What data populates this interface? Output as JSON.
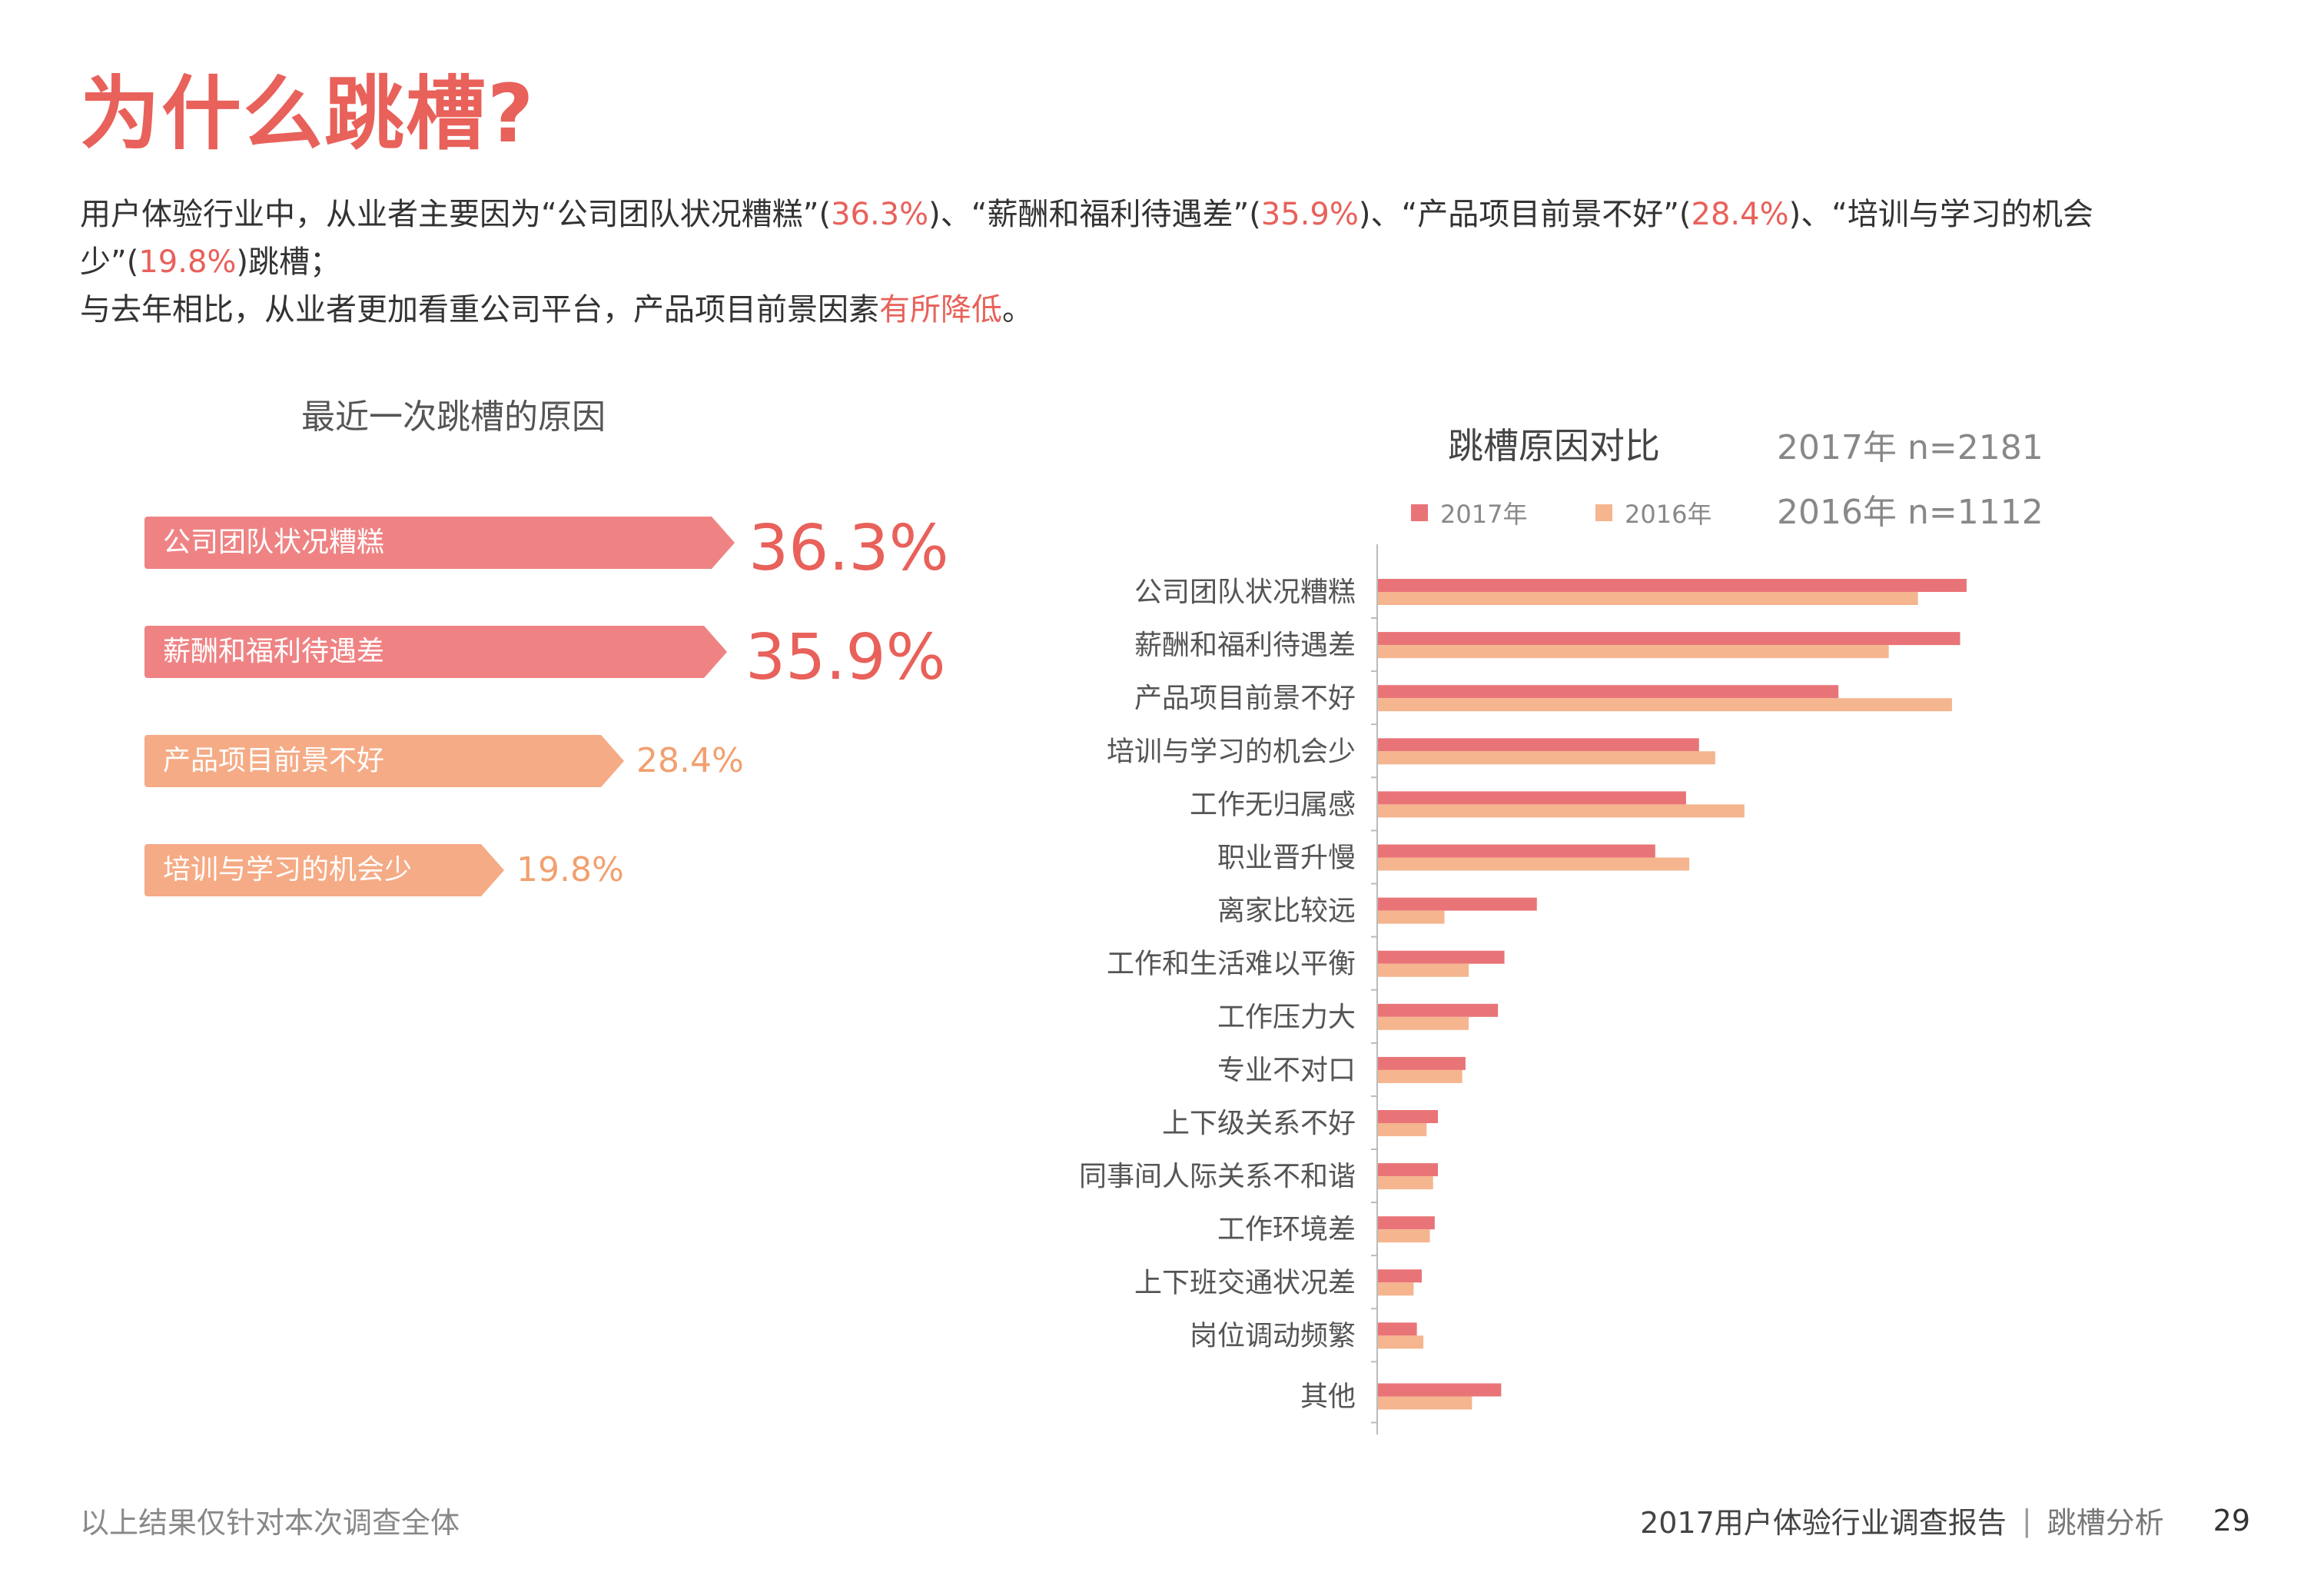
{
  "title": "为什么跳槽?",
  "intro": {
    "p1_a": "用户体验行业中，从业者主要因为“公司团队状况糟糕”(",
    "p1_v1": "36.3%",
    "p1_b": ")、“薪酬和福利待遇差”(",
    "p1_v2": "35.9%",
    "p1_c": ")、“产品项目前景不好”(",
    "p1_v3": "28.4%",
    "p1_d": ")、“培训与学习的机会少”(",
    "p1_v4": "19.8%",
    "p1_e": ")跳槽；",
    "p2_a": "与去年相比，从业者更加看重公司平台，产品项目前景因素",
    "p2_hl": "有所降低",
    "p2_b": "。"
  },
  "top_reasons": {
    "title": "最近一次跳槽的原因",
    "items": [
      {
        "label": "公司团队状况糟糕",
        "value": "36.3%",
        "color": "#ef8384"
      },
      {
        "label": "薪酬和福利待遇差",
        "value": "35.9%",
        "color": "#ef8384"
      },
      {
        "label": "产品项目前景不好",
        "value": "28.4%",
        "color": "#f5ab85"
      },
      {
        "label": "培训与学习的机会少",
        "value": "19.8%",
        "color": "#f5ab85"
      }
    ]
  },
  "chart_data": {
    "type": "bar",
    "orientation": "horizontal",
    "title": "跳槽原因对比",
    "sample_sizes": [
      "2017年 n=2181",
      "2016年 n=1112"
    ],
    "legend_position": "top",
    "xlabel": "",
    "ylabel": "",
    "xlim": [
      0,
      40
    ],
    "grid": false,
    "categories": [
      "公司团队状况糟糕",
      "薪酬和福利待遇差",
      "产品项目前景不好",
      "培训与学习的机会少",
      "工作无归属感",
      "职业晋升慢",
      "离家比较远",
      "工作和生活难以平衡",
      "工作压力大",
      "专业不对口",
      "上下级关系不好",
      "同事间人际关系不和谐",
      "工作环境差",
      "上下班交通状况差",
      "岗位调动频繁",
      "其他"
    ],
    "series": [
      {
        "name": "2017年",
        "color": "#e97478",
        "values": [
          36.3,
          35.9,
          28.4,
          19.8,
          19.0,
          17.1,
          9.8,
          7.8,
          7.4,
          5.4,
          3.7,
          3.7,
          3.5,
          2.7,
          2.4,
          7.6
        ]
      },
      {
        "name": "2016年",
        "color": "#f5b58f",
        "values": [
          33.3,
          31.5,
          35.4,
          20.8,
          22.6,
          19.2,
          4.1,
          5.6,
          5.6,
          5.2,
          3.0,
          3.4,
          3.2,
          2.2,
          2.8,
          5.8
        ]
      }
    ]
  },
  "footer": {
    "note": "以上结果仅针对本次调查全体",
    "report": "2017用户体验行业调查报告",
    "section": "跳槽分析",
    "page": "29"
  }
}
